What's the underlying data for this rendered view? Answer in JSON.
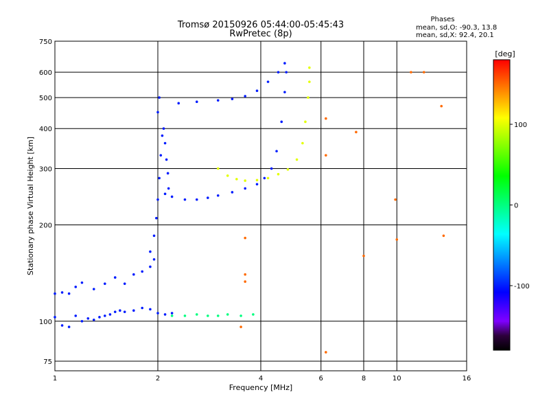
{
  "chart_data": {
    "type": "scatter",
    "title": "Tromsø 20150926 05:44:00-05:45:43",
    "subtitle": "RwPretec (8p)",
    "stats": {
      "heading": "Phases",
      "line1": "mean, sd,O: -90.3, 13.8",
      "line2": "mean, sd,X:  92.4, 20.1"
    },
    "xlabel": "Frequency [MHz]",
    "ylabel": "Stationary phase Virtual Height [km]",
    "xscale": "log",
    "yscale": "log",
    "xlim": [
      1,
      16
    ],
    "ylim": [
      70,
      750
    ],
    "xticks": [
      1,
      2,
      4,
      6,
      8,
      10,
      16
    ],
    "yticks": [
      75,
      100,
      200,
      300,
      400,
      500,
      600,
      750
    ],
    "grid": true,
    "colorbar": {
      "label": "[deg]",
      "min": -180,
      "max": 180,
      "ticks": [
        100,
        0,
        -100
      ],
      "colormap": "rainbow"
    },
    "series": [
      {
        "trace": "low-lying-echoes",
        "phase": -100,
        "points": [
          [
            1.0,
            103
          ],
          [
            1.05,
            97
          ],
          [
            1.1,
            96
          ],
          [
            1.15,
            104
          ],
          [
            1.2,
            100
          ],
          [
            1.25,
            102
          ],
          [
            1.3,
            101
          ],
          [
            1.35,
            103
          ],
          [
            1.4,
            104
          ],
          [
            1.45,
            105
          ],
          [
            1.5,
            107
          ],
          [
            1.55,
            108
          ],
          [
            1.6,
            107
          ],
          [
            1.7,
            108
          ],
          [
            1.8,
            110
          ],
          [
            1.9,
            109
          ],
          [
            2.0,
            106
          ],
          [
            2.1,
            105
          ],
          [
            2.2,
            106
          ]
        ]
      },
      {
        "trace": "sporadic-plateau",
        "phase": -100,
        "points": [
          [
            1.0,
            122
          ],
          [
            1.05,
            123
          ],
          [
            1.1,
            122
          ],
          [
            1.15,
            128
          ],
          [
            1.2,
            132
          ],
          [
            1.3,
            126
          ],
          [
            1.4,
            131
          ],
          [
            1.5,
            137
          ],
          [
            1.6,
            131
          ],
          [
            1.7,
            140
          ],
          [
            1.8,
            143
          ],
          [
            1.9,
            148
          ],
          [
            1.95,
            156
          ]
        ]
      },
      {
        "trace": "o-mode-rise",
        "phase": -100,
        "points": [
          [
            1.9,
            165
          ],
          [
            1.95,
            185
          ],
          [
            1.98,
            210
          ],
          [
            2.0,
            240
          ],
          [
            2.02,
            280
          ],
          [
            2.04,
            330
          ],
          [
            2.06,
            380
          ],
          [
            2.08,
            400
          ],
          [
            2.1,
            360
          ],
          [
            2.12,
            320
          ],
          [
            2.14,
            290
          ],
          [
            2.15,
            260
          ]
        ]
      },
      {
        "trace": "hook-upper",
        "phase": -100,
        "points": [
          [
            2.0,
            450
          ],
          [
            2.02,
            500
          ],
          [
            2.3,
            480
          ],
          [
            2.6,
            485
          ],
          [
            3.0,
            490
          ],
          [
            3.3,
            495
          ],
          [
            3.6,
            505
          ],
          [
            3.9,
            525
          ],
          [
            4.2,
            560
          ],
          [
            4.5,
            600
          ],
          [
            4.7,
            640
          ]
        ]
      },
      {
        "trace": "f-region-o",
        "phase": -100,
        "points": [
          [
            2.1,
            250
          ],
          [
            2.2,
            245
          ],
          [
            2.4,
            240
          ],
          [
            2.6,
            240
          ],
          [
            2.8,
            243
          ],
          [
            3.0,
            247
          ],
          [
            3.3,
            253
          ],
          [
            3.6,
            260
          ],
          [
            3.9,
            268
          ],
          [
            4.1,
            280
          ],
          [
            4.3,
            300
          ],
          [
            4.45,
            340
          ],
          [
            4.6,
            420
          ],
          [
            4.7,
            520
          ],
          [
            4.75,
            600
          ]
        ]
      },
      {
        "trace": "f-region-x",
        "phase": 100,
        "points": [
          [
            3.0,
            300
          ],
          [
            3.2,
            285
          ],
          [
            3.4,
            278
          ],
          [
            3.6,
            275
          ],
          [
            3.9,
            276
          ],
          [
            4.2,
            280
          ],
          [
            4.5,
            288
          ],
          [
            4.8,
            298
          ],
          [
            5.1,
            320
          ],
          [
            5.3,
            360
          ],
          [
            5.4,
            420
          ],
          [
            5.5,
            500
          ],
          [
            5.55,
            560
          ],
          [
            5.55,
            620
          ]
        ]
      },
      {
        "trace": "e-region",
        "phase": 0,
        "points": [
          [
            2.2,
            104
          ],
          [
            2.4,
            104
          ],
          [
            2.6,
            105
          ],
          [
            2.8,
            104
          ],
          [
            3.0,
            104
          ],
          [
            3.2,
            105
          ],
          [
            3.5,
            104
          ],
          [
            3.8,
            105
          ]
        ]
      },
      {
        "trace": "spread-echoes",
        "phase": 150,
        "points": [
          [
            3.6,
            182
          ],
          [
            3.6,
            140
          ],
          [
            3.6,
            133
          ],
          [
            3.5,
            96
          ],
          [
            6.2,
            80
          ],
          [
            6.2,
            330
          ],
          [
            6.2,
            430
          ],
          [
            7.6,
            390
          ],
          [
            8.0,
            160
          ],
          [
            9.9,
            240
          ],
          [
            10.0,
            180
          ],
          [
            11.0,
            600
          ],
          [
            12.0,
            600
          ],
          [
            13.5,
            470
          ],
          [
            13.7,
            185
          ]
        ]
      }
    ]
  }
}
